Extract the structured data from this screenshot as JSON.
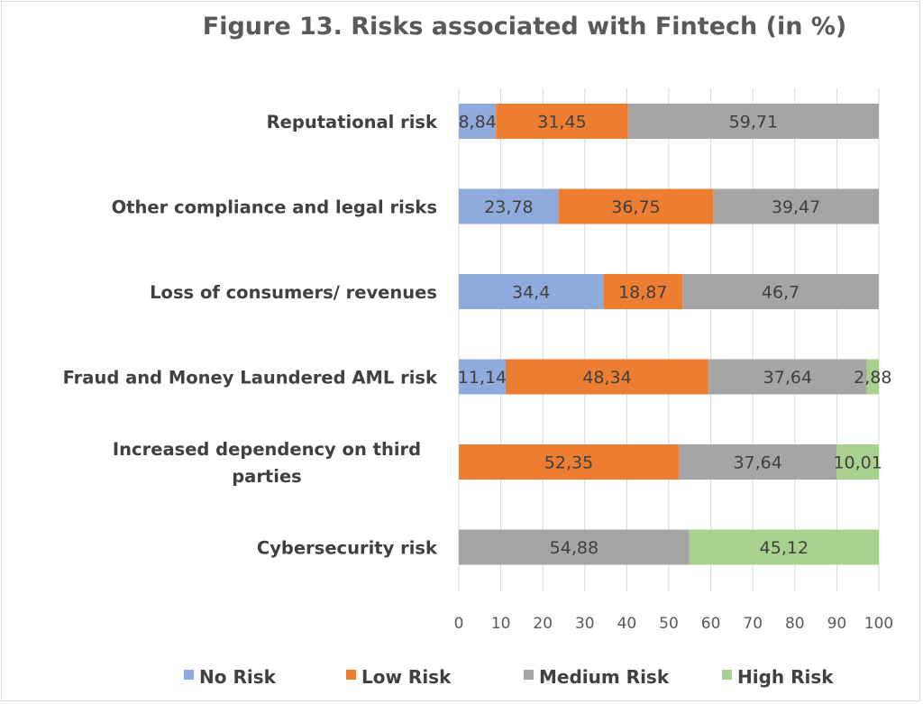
{
  "chart_data": {
    "type": "bar",
    "orientation": "horizontal",
    "stacked": true,
    "title": "Figure 13. Risks associated with Fintech (in %)",
    "categories": [
      [
        "Reputational risk"
      ],
      [
        "Other compliance and legal risks"
      ],
      [
        "Loss of consumers/ revenues"
      ],
      [
        "Fraud and  Money Laundered AML risk"
      ],
      [
        "Increased dependency on  third",
        "parties"
      ],
      [
        "Cybersecurity risk"
      ]
    ],
    "series": [
      {
        "name": "No Risk",
        "color": "#8faadc",
        "values": [
          8.84,
          23.78,
          34.4,
          11.14,
          0,
          0
        ],
        "labels": [
          "8,84",
          "23,78",
          "34,4",
          "11,14",
          "",
          ""
        ]
      },
      {
        "name": "Low Risk",
        "color": "#ed7d31",
        "values": [
          31.45,
          36.75,
          18.87,
          48.34,
          52.35,
          0
        ],
        "labels": [
          "31,45",
          "36,75",
          "18,87",
          "48,34",
          "52,35",
          ""
        ]
      },
      {
        "name": "Medium Risk",
        "color": "#a5a5a5",
        "values": [
          59.71,
          39.47,
          46.7,
          37.64,
          37.64,
          54.88
        ],
        "labels": [
          "59,71",
          "39,47",
          "46,7",
          "37,64",
          "37,64",
          "54,88"
        ]
      },
      {
        "name": "High Risk",
        "color": "#a9d18e",
        "values": [
          0,
          0,
          0,
          2.88,
          10.01,
          45.12
        ],
        "labels": [
          "",
          "",
          "",
          "2,88",
          "10,01",
          "45,12"
        ]
      }
    ],
    "xlim": [
      0,
      100
    ],
    "xticks": [
      "0",
      "10",
      "20",
      "30",
      "40",
      "50",
      "60",
      "70",
      "80",
      "90",
      "100"
    ],
    "grid": true,
    "legend_position": "bottom"
  }
}
